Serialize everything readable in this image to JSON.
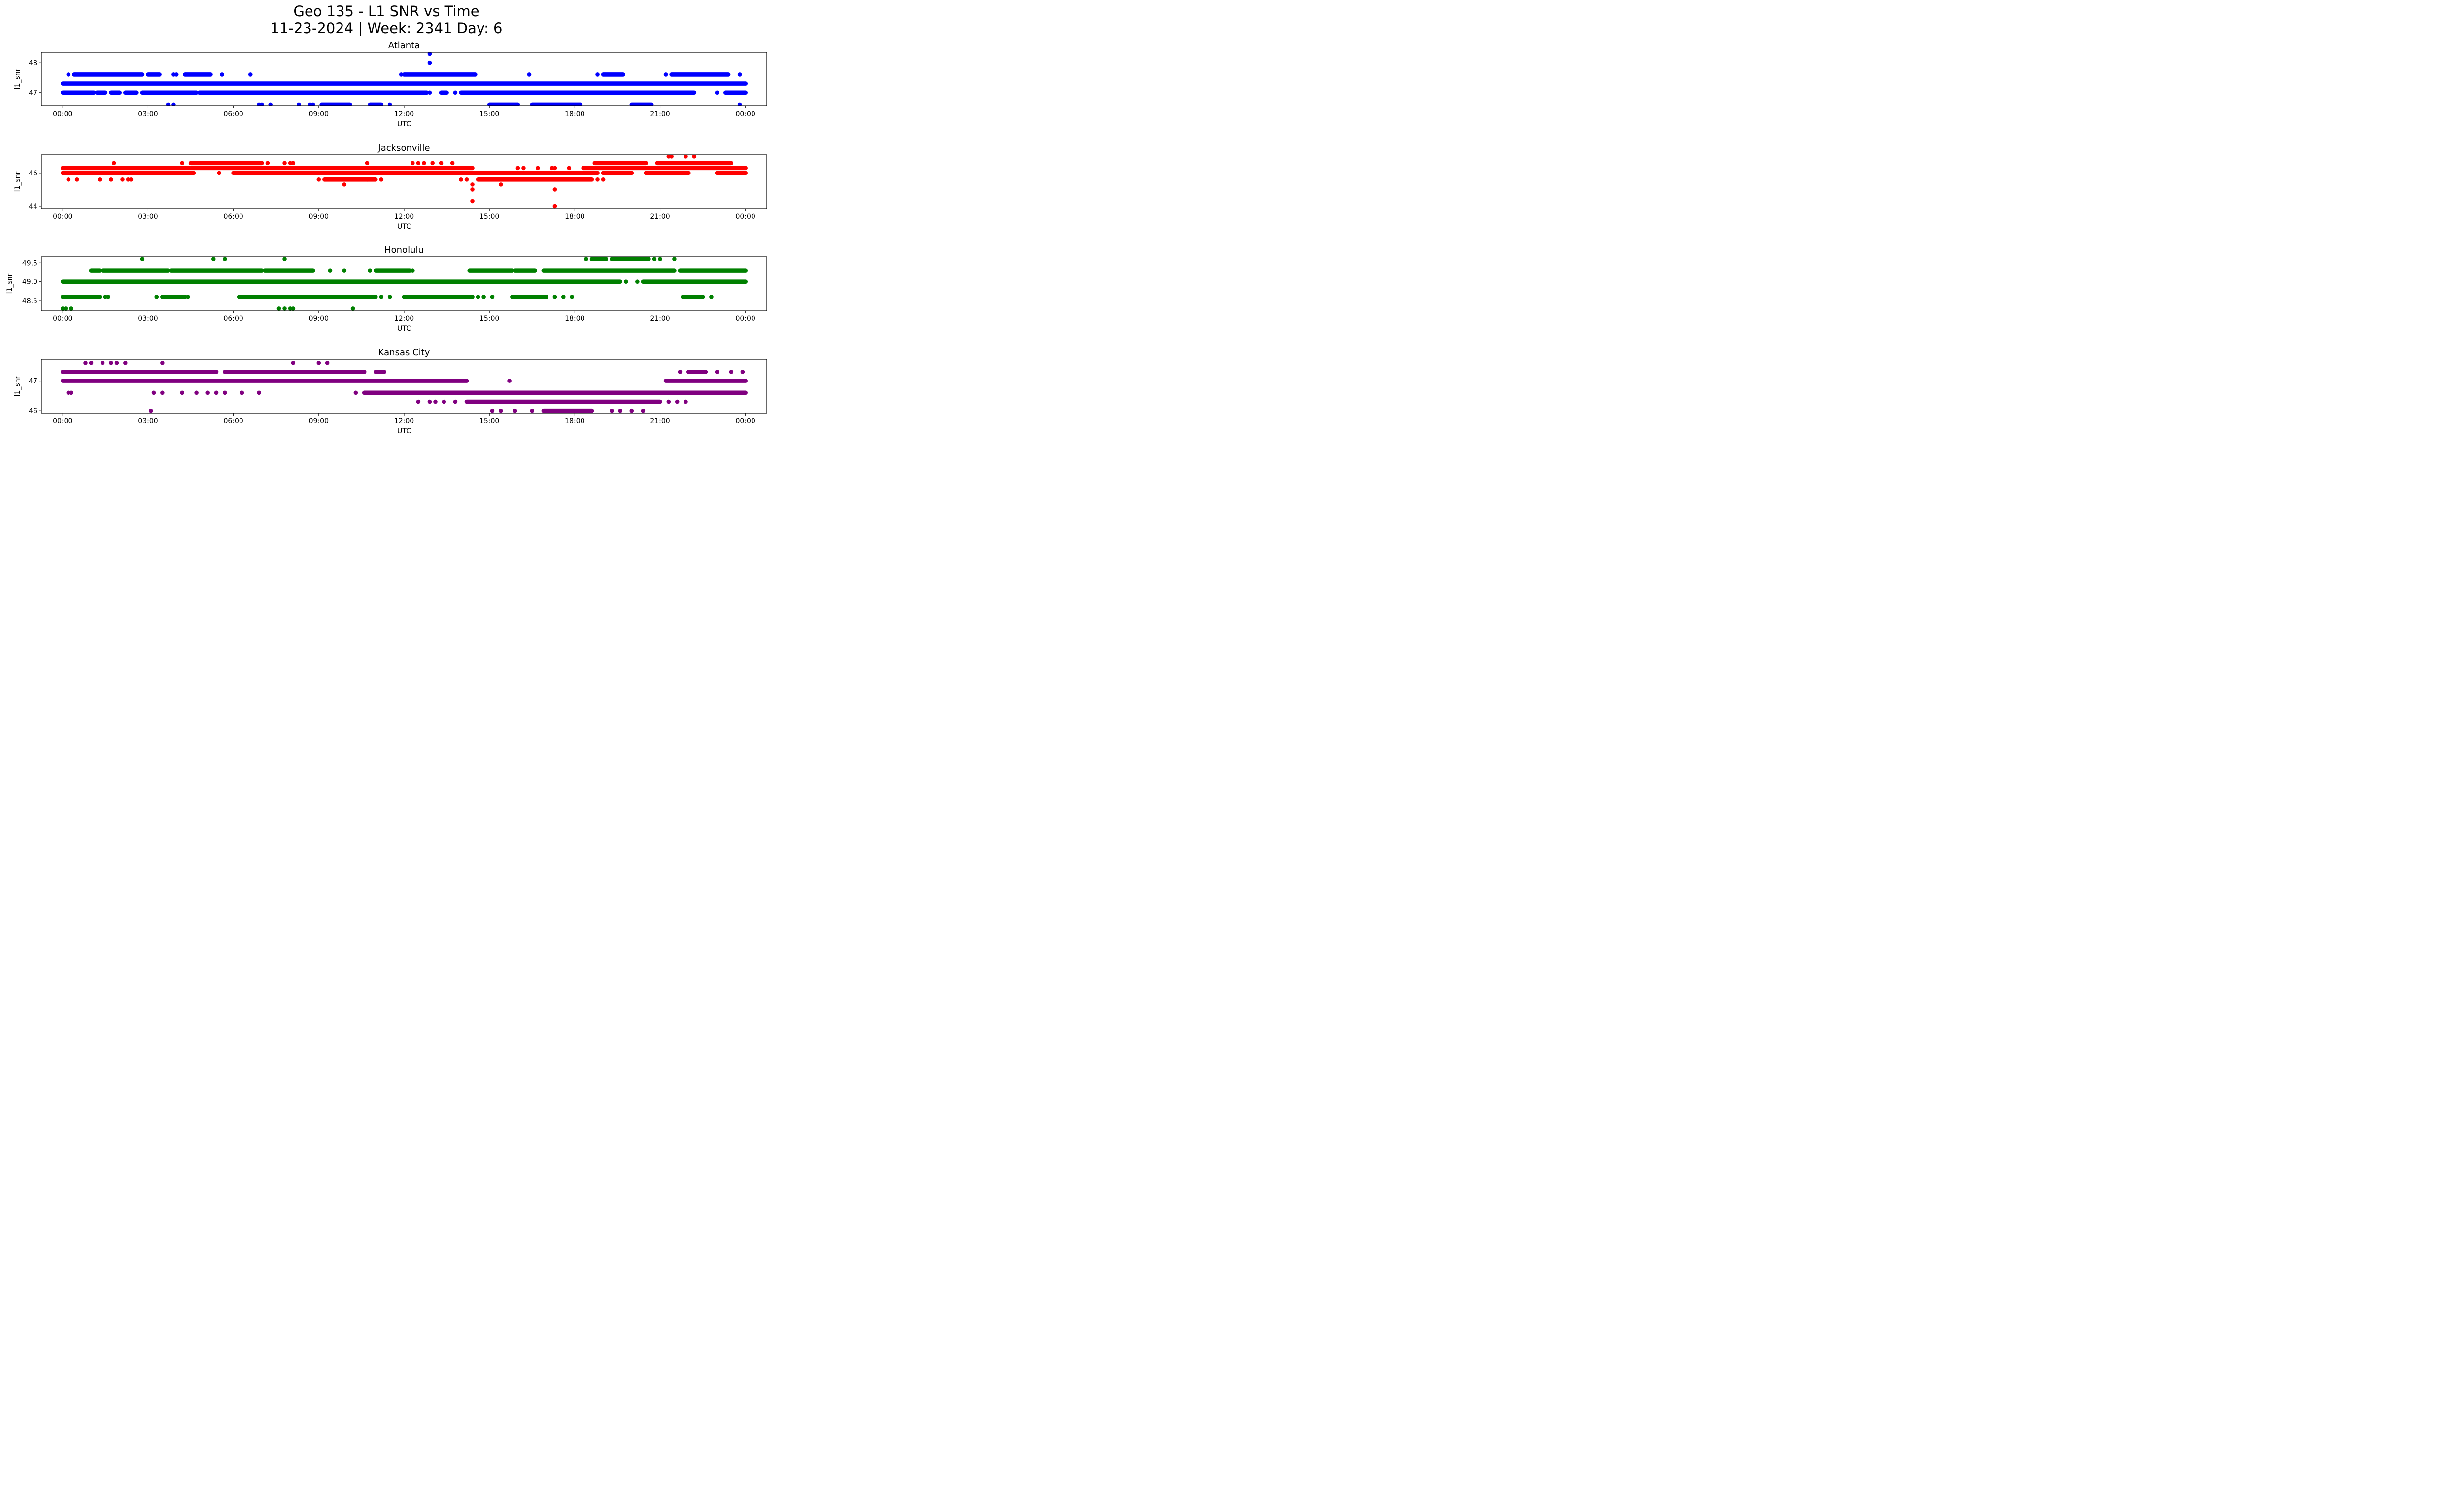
{
  "chart_data": {
    "type": "scatter",
    "title": "Geo 135 - L1 SNR vs Time",
    "subtitle": "11-23-2024 | Week: 2341 Day: 6",
    "x_unit": "hours_utc",
    "xlim": [
      -0.75,
      24.75
    ],
    "xticks": [
      0,
      3,
      6,
      9,
      12,
      15,
      18,
      21,
      24
    ],
    "xtick_labels": [
      "00:00",
      "03:00",
      "06:00",
      "09:00",
      "12:00",
      "15:00",
      "18:00",
      "21:00",
      "00:00"
    ],
    "grid": false,
    "legend": "none",
    "panels": [
      {
        "name": "Atlanta",
        "color": "#0000ff",
        "xlabel": "UTC",
        "ylabel": "l1_snr",
        "ylim": [
          46.55,
          48.35
        ],
        "yticks": [
          47,
          48
        ],
        "ytick_labels": [
          "47",
          "48"
        ],
        "runs": [
          [
            47.3,
            0.0,
            24.0
          ],
          [
            47.0,
            0.0,
            1.1
          ],
          [
            47.0,
            1.2,
            1.5
          ],
          [
            47.0,
            1.7,
            2.0
          ],
          [
            47.0,
            2.2,
            2.6
          ],
          [
            47.0,
            2.8,
            4.7
          ],
          [
            47.0,
            4.8,
            12.8
          ],
          [
            47.0,
            13.3,
            13.5
          ],
          [
            47.0,
            14.0,
            22.2
          ],
          [
            47.0,
            23.3,
            24.0
          ],
          [
            47.6,
            0.4,
            2.8
          ],
          [
            47.6,
            3.0,
            3.4
          ],
          [
            47.6,
            4.3,
            5.2
          ],
          [
            47.6,
            12.0,
            14.5
          ],
          [
            47.6,
            19.0,
            19.7
          ],
          [
            47.6,
            21.4,
            23.4
          ],
          [
            46.6,
            9.1,
            10.1
          ],
          [
            46.6,
            10.8,
            11.2
          ],
          [
            46.6,
            15.0,
            16.0
          ],
          [
            46.6,
            16.5,
            18.2
          ],
          [
            46.6,
            20.0,
            20.7
          ]
        ],
        "points": [
          [
            48.3,
            12.9
          ],
          [
            48.0,
            12.9
          ],
          [
            47.6,
            0.2
          ],
          [
            47.6,
            3.9
          ],
          [
            47.6,
            4.0
          ],
          [
            47.6,
            5.6
          ],
          [
            47.6,
            6.6
          ],
          [
            47.6,
            11.9
          ],
          [
            47.6,
            16.4
          ],
          [
            47.6,
            18.8
          ],
          [
            47.6,
            21.2
          ],
          [
            47.6,
            23.8
          ],
          [
            47.0,
            12.9
          ],
          [
            47.0,
            13.8
          ],
          [
            47.0,
            23.0
          ],
          [
            46.6,
            3.7
          ],
          [
            46.6,
            3.9
          ],
          [
            46.6,
            6.9
          ],
          [
            46.6,
            7.0
          ],
          [
            46.6,
            7.3
          ],
          [
            46.6,
            8.3
          ],
          [
            46.6,
            8.7
          ],
          [
            46.6,
            8.8
          ],
          [
            46.6,
            11.5
          ],
          [
            46.6,
            23.8
          ]
        ]
      },
      {
        "name": "Jacksonville",
        "color": "#ff0000",
        "xlabel": "UTC",
        "ylabel": "l1_snr",
        "ylim": [
          43.85,
          47.1
        ],
        "yticks": [
          44,
          46
        ],
        "ytick_labels": [
          "44",
          "46"
        ],
        "runs": [
          [
            46.3,
            0.0,
            14.4
          ],
          [
            46.3,
            18.3,
            24.0
          ],
          [
            46.0,
            0.0,
            4.6
          ],
          [
            46.0,
            6.0,
            18.8
          ],
          [
            46.0,
            19.0,
            20.0
          ],
          [
            46.0,
            20.5,
            22.0
          ],
          [
            46.0,
            23.0,
            24.0
          ],
          [
            46.6,
            4.5,
            7.0
          ],
          [
            46.6,
            18.7,
            20.5
          ],
          [
            46.6,
            20.9,
            23.5
          ],
          [
            45.6,
            9.2,
            11.0
          ],
          [
            45.6,
            14.6,
            18.6
          ]
        ],
        "points": [
          [
            46.6,
            1.8
          ],
          [
            46.6,
            4.2
          ],
          [
            46.6,
            7.2
          ],
          [
            46.6,
            7.8
          ],
          [
            46.6,
            8.0
          ],
          [
            46.6,
            8.1
          ],
          [
            46.6,
            10.7
          ],
          [
            46.6,
            12.3
          ],
          [
            46.6,
            12.5
          ],
          [
            46.6,
            12.7
          ],
          [
            46.6,
            13.0
          ],
          [
            46.6,
            13.3
          ],
          [
            46.6,
            13.7
          ],
          [
            47.0,
            21.3
          ],
          [
            47.0,
            21.4
          ],
          [
            47.0,
            21.9
          ],
          [
            47.0,
            22.2
          ],
          [
            46.3,
            16.0
          ],
          [
            46.3,
            16.2
          ],
          [
            46.3,
            16.7
          ],
          [
            46.3,
            17.2
          ],
          [
            46.3,
            17.3
          ],
          [
            46.3,
            17.8
          ],
          [
            46.0,
            5.5
          ],
          [
            45.6,
            0.2
          ],
          [
            45.6,
            0.5
          ],
          [
            45.6,
            1.3
          ],
          [
            45.6,
            1.7
          ],
          [
            45.6,
            2.1
          ],
          [
            45.6,
            2.3
          ],
          [
            45.6,
            2.4
          ],
          [
            45.6,
            9.0
          ],
          [
            45.6,
            10.7
          ],
          [
            45.6,
            11.2
          ],
          [
            45.6,
            14.0
          ],
          [
            45.6,
            14.2
          ],
          [
            45.6,
            18.8
          ],
          [
            45.6,
            19.0
          ],
          [
            45.3,
            9.9
          ],
          [
            45.3,
            14.4
          ],
          [
            45.3,
            15.4
          ],
          [
            45.0,
            14.4
          ],
          [
            45.0,
            17.3
          ],
          [
            44.3,
            14.4
          ],
          [
            44.0,
            17.3
          ]
        ]
      },
      {
        "name": "Honolulu",
        "color": "#008000",
        "xlabel": "UTC",
        "ylabel": "l1_snr",
        "ylim": [
          48.24,
          49.66
        ],
        "yticks": [
          48.5,
          49.0,
          49.5
        ],
        "ytick_labels": [
          "48.5",
          "49.0",
          "49.5"
        ],
        "runs": [
          [
            49.0,
            0.0,
            19.6
          ],
          [
            49.0,
            20.4,
            24.0
          ],
          [
            49.3,
            1.0,
            1.3
          ],
          [
            49.3,
            1.4,
            3.7
          ],
          [
            49.3,
            3.8,
            7.0
          ],
          [
            49.3,
            7.1,
            8.8
          ],
          [
            49.3,
            11.0,
            12.2
          ],
          [
            49.3,
            14.3,
            15.8
          ],
          [
            49.3,
            15.9,
            16.6
          ],
          [
            49.3,
            16.9,
            21.5
          ],
          [
            49.3,
            21.7,
            24.0
          ],
          [
            48.6,
            0.0,
            1.3
          ],
          [
            48.6,
            3.5,
            4.3
          ],
          [
            48.6,
            6.2,
            11.0
          ],
          [
            48.6,
            12.0,
            14.4
          ],
          [
            48.6,
            15.8,
            17.0
          ],
          [
            48.6,
            21.8,
            22.5
          ],
          [
            49.6,
            18.6,
            19.1
          ],
          [
            49.6,
            19.3,
            20.6
          ]
        ],
        "points": [
          [
            49.6,
            2.8
          ],
          [
            49.6,
            5.3
          ],
          [
            49.6,
            5.7
          ],
          [
            49.6,
            7.8
          ],
          [
            49.6,
            18.4
          ],
          [
            49.6,
            20.8
          ],
          [
            49.6,
            21.0
          ],
          [
            49.6,
            21.5
          ],
          [
            49.3,
            9.4
          ],
          [
            49.3,
            9.9
          ],
          [
            49.3,
            10.8
          ],
          [
            49.3,
            12.3
          ],
          [
            49.0,
            19.8
          ],
          [
            49.0,
            20.2
          ],
          [
            48.6,
            1.5
          ],
          [
            48.6,
            1.6
          ],
          [
            48.6,
            3.3
          ],
          [
            48.6,
            4.4
          ],
          [
            48.6,
            11.2
          ],
          [
            48.6,
            11.5
          ],
          [
            48.6,
            14.6
          ],
          [
            48.6,
            14.8
          ],
          [
            48.6,
            15.1
          ],
          [
            48.6,
            17.3
          ],
          [
            48.6,
            17.6
          ],
          [
            48.6,
            17.9
          ],
          [
            48.6,
            22.8
          ],
          [
            48.3,
            0.0
          ],
          [
            48.3,
            0.1
          ],
          [
            48.3,
            0.3
          ],
          [
            48.3,
            7.6
          ],
          [
            48.3,
            7.8
          ],
          [
            48.3,
            8.0
          ],
          [
            48.3,
            8.1
          ],
          [
            48.3,
            10.2
          ]
        ]
      },
      {
        "name": "Kansas City",
        "color": "#800080",
        "xlabel": "UTC",
        "ylabel": "l1_snr",
        "ylim": [
          45.92,
          47.72
        ],
        "yticks": [
          46,
          47
        ],
        "ytick_labels": [
          "46",
          "47"
        ],
        "runs": [
          [
            47.3,
            0.0,
            5.4
          ],
          [
            47.3,
            5.7,
            10.6
          ],
          [
            47.3,
            11.0,
            11.3
          ],
          [
            47.3,
            22.0,
            22.6
          ],
          [
            47.0,
            0.0,
            14.2
          ],
          [
            47.0,
            21.2,
            24.0
          ],
          [
            46.6,
            10.6,
            24.0
          ],
          [
            46.3,
            14.2,
            21.0
          ],
          [
            46.0,
            16.9,
            18.6
          ]
        ],
        "points": [
          [
            47.6,
            0.8
          ],
          [
            47.6,
            1.0
          ],
          [
            47.6,
            1.4
          ],
          [
            47.6,
            1.7
          ],
          [
            47.6,
            1.9
          ],
          [
            47.6,
            2.2
          ],
          [
            47.6,
            3.5
          ],
          [
            47.6,
            8.1
          ],
          [
            47.6,
            9.0
          ],
          [
            47.6,
            9.3
          ],
          [
            47.3,
            21.7
          ],
          [
            47.3,
            23.0
          ],
          [
            47.3,
            23.5
          ],
          [
            47.3,
            23.9
          ],
          [
            47.0,
            15.7
          ],
          [
            46.6,
            0.2
          ],
          [
            46.6,
            0.3
          ],
          [
            46.6,
            3.2
          ],
          [
            46.6,
            3.5
          ],
          [
            46.6,
            4.2
          ],
          [
            46.6,
            4.7
          ],
          [
            46.6,
            5.1
          ],
          [
            46.6,
            5.4
          ],
          [
            46.6,
            5.7
          ],
          [
            46.6,
            6.3
          ],
          [
            46.6,
            6.9
          ],
          [
            46.6,
            10.3
          ],
          [
            46.3,
            12.5
          ],
          [
            46.3,
            12.9
          ],
          [
            46.3,
            13.1
          ],
          [
            46.3,
            13.4
          ],
          [
            46.3,
            13.8
          ],
          [
            46.3,
            21.3
          ],
          [
            46.3,
            21.6
          ],
          [
            46.3,
            21.9
          ],
          [
            46.0,
            3.1
          ],
          [
            46.0,
            15.1
          ],
          [
            46.0,
            15.4
          ],
          [
            46.0,
            15.9
          ],
          [
            46.0,
            16.5
          ],
          [
            46.0,
            19.3
          ],
          [
            46.0,
            19.6
          ],
          [
            46.0,
            20.0
          ],
          [
            46.0,
            20.4
          ]
        ]
      }
    ]
  }
}
